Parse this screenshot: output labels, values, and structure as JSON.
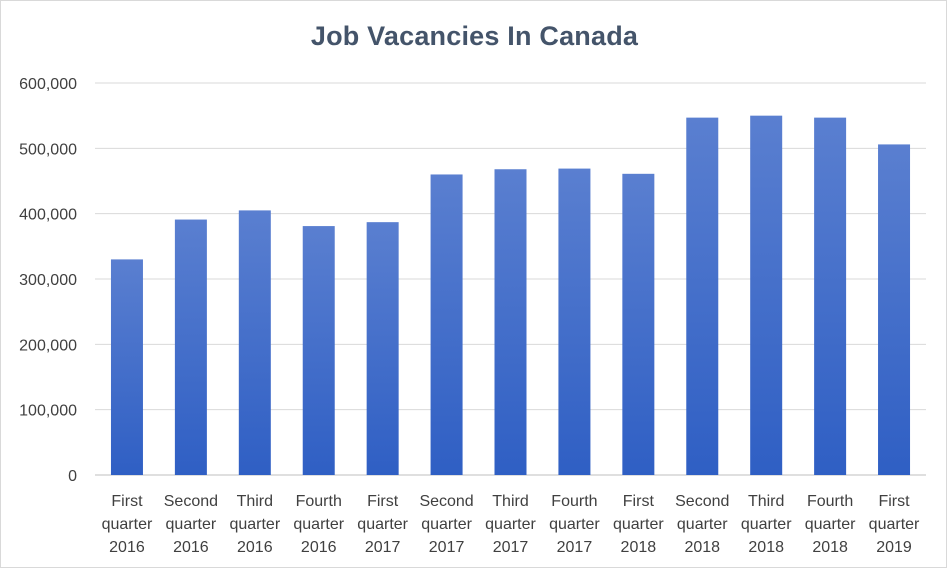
{
  "chart_data": {
    "type": "bar",
    "title": "Job Vacancies In Canada",
    "xlabel": "",
    "ylabel": "",
    "ylim": [
      0,
      600000
    ],
    "yticks": [
      0,
      100000,
      200000,
      300000,
      400000,
      500000,
      600000
    ],
    "ytick_labels": [
      "0",
      "100,000",
      "200,000",
      "300,000",
      "400,000",
      "500,000",
      "600,000"
    ],
    "grid": true,
    "legend": "none",
    "bar_color_top": "#5a7fd0",
    "bar_color_bottom": "#2f5fc4",
    "categories": [
      [
        "First",
        "quarter",
        "2016"
      ],
      [
        "Second",
        "quarter",
        "2016"
      ],
      [
        "Third",
        "quarter",
        "2016"
      ],
      [
        "Fourth",
        "quarter",
        "2016"
      ],
      [
        "First",
        "quarter",
        "2017"
      ],
      [
        "Second",
        "quarter",
        "2017"
      ],
      [
        "Third",
        "quarter",
        "2017"
      ],
      [
        "Fourth",
        "quarter",
        "2017"
      ],
      [
        "First",
        "quarter",
        "2018"
      ],
      [
        "Second",
        "quarter",
        "2018"
      ],
      [
        "Third",
        "quarter",
        "2018"
      ],
      [
        "Fourth",
        "quarter",
        "2018"
      ],
      [
        "First",
        "quarter",
        "2019"
      ]
    ],
    "values": [
      330000,
      391000,
      405000,
      381000,
      387000,
      460000,
      468000,
      469000,
      461000,
      547000,
      550000,
      547000,
      506000
    ]
  }
}
